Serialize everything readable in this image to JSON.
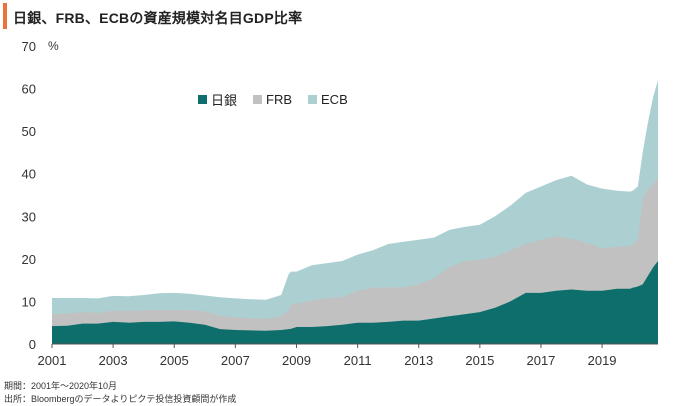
{
  "header": {
    "title": "日銀、FRB、ECBの資産規模対名目GDP比率"
  },
  "notes": {
    "period": "期間：2001年～2020年10月",
    "source": "出所：Bloombergのデータよりピクテ投信投資顧問が作成"
  },
  "colors": {
    "accent": "#e8743b",
    "boj": "#0d6e6b",
    "frb": "#c1c1c1",
    "ecb": "#acd0d2"
  },
  "chart_data": {
    "type": "area",
    "stacked": true,
    "title": "日銀、FRB、ECBの資産規模対名目GDP比率",
    "ylabel": "%",
    "xlabel": "",
    "ylim": [
      0,
      70
    ],
    "xlim": [
      2001.0,
      2020.83
    ],
    "y_ticks": [
      0,
      10,
      20,
      30,
      40,
      50,
      60,
      70
    ],
    "x_ticks": [
      "2001",
      "2003",
      "2005",
      "2007",
      "2009",
      "2011",
      "2013",
      "2015",
      "2017",
      "2019"
    ],
    "legend_position": "top-left, inside plot",
    "grid": false,
    "x": [
      2001.0,
      2001.5,
      2002.0,
      2002.5,
      2003.0,
      2003.5,
      2004.0,
      2004.5,
      2005.0,
      2005.5,
      2006.0,
      2006.5,
      2007.0,
      2007.5,
      2008.0,
      2008.5,
      2008.75,
      2008.83,
      2009.0,
      2009.5,
      2010.0,
      2010.5,
      2011.0,
      2011.5,
      2012.0,
      2012.5,
      2013.0,
      2013.5,
      2014.0,
      2014.5,
      2015.0,
      2015.5,
      2016.0,
      2016.5,
      2017.0,
      2017.5,
      2018.0,
      2018.5,
      2019.0,
      2019.5,
      2019.92,
      2020.0,
      2020.17,
      2020.33,
      2020.5,
      2020.67,
      2020.83
    ],
    "series": [
      {
        "name": "日銀",
        "values": [
          4.2,
          4.3,
          4.8,
          4.8,
          5.2,
          5.0,
          5.2,
          5.2,
          5.3,
          5.0,
          4.5,
          3.5,
          3.3,
          3.2,
          3.1,
          3.3,
          3.5,
          3.6,
          4.0,
          4.0,
          4.2,
          4.5,
          5.0,
          5.0,
          5.2,
          5.5,
          5.5,
          6.0,
          6.5,
          7.0,
          7.5,
          8.5,
          10.0,
          12.0,
          12.0,
          12.5,
          12.8,
          12.5,
          12.5,
          13.0,
          13.0,
          13.2,
          13.5,
          14.0,
          16.0,
          18.0,
          19.5
        ]
      },
      {
        "name": "FRB",
        "values": [
          7.0,
          7.2,
          7.5,
          7.3,
          7.8,
          7.8,
          7.9,
          8.0,
          8.0,
          7.9,
          7.7,
          6.6,
          6.3,
          6.0,
          6.0,
          6.5,
          8.0,
          9.3,
          9.5,
          10.2,
          10.8,
          11.0,
          12.5,
          13.2,
          13.3,
          13.3,
          14.0,
          15.5,
          18.0,
          19.5,
          19.8,
          20.5,
          22.0,
          23.5,
          24.5,
          25.3,
          24.7,
          23.8,
          22.5,
          22.8,
          23.0,
          23.5,
          24.5,
          34.0,
          36.5,
          37.5,
          39.0
        ]
      },
      {
        "name": "ECB",
        "values": [
          10.8,
          10.8,
          10.8,
          10.7,
          11.3,
          11.2,
          11.5,
          11.9,
          12.0,
          11.8,
          11.4,
          11.0,
          10.7,
          10.5,
          10.4,
          11.5,
          16.5,
          17.0,
          17.0,
          18.5,
          19.0,
          19.5,
          21.0,
          22.0,
          23.5,
          24.0,
          24.5,
          25.0,
          26.8,
          27.5,
          28.0,
          30.0,
          32.5,
          35.5,
          37.0,
          38.5,
          39.5,
          37.5,
          36.5,
          36.0,
          35.8,
          36.0,
          37.0,
          45.0,
          52.0,
          58.0,
          62.0
        ]
      }
    ]
  }
}
